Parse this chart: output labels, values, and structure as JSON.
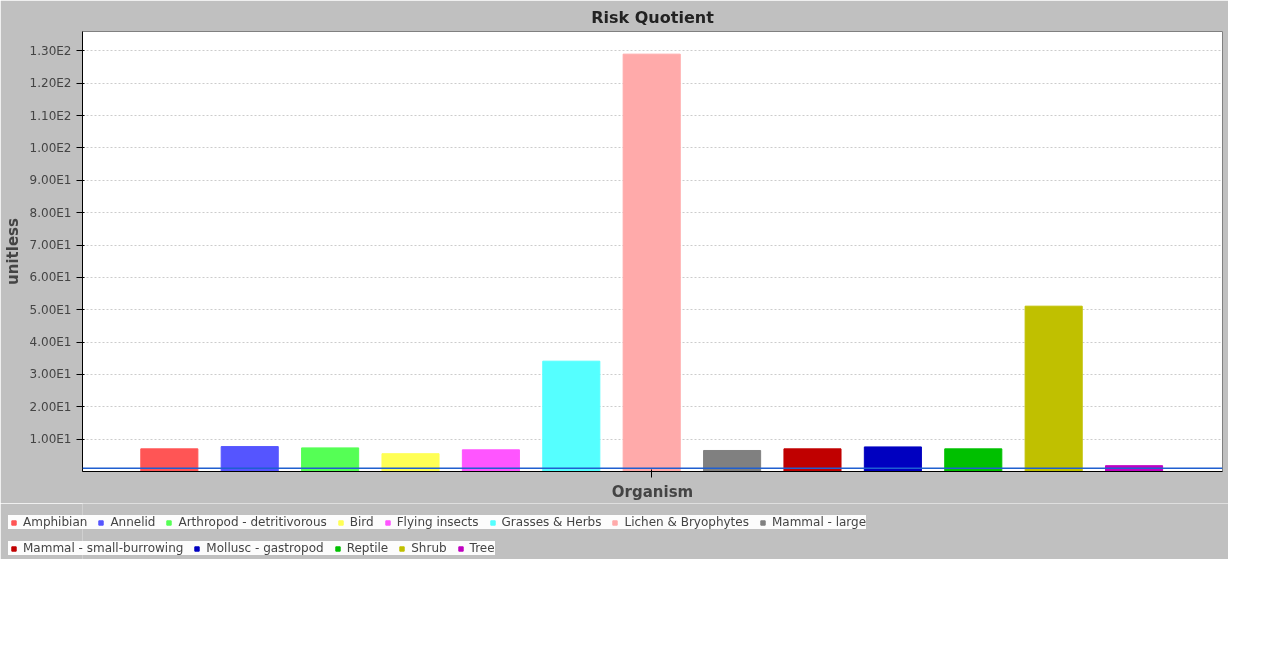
{
  "chart_data": {
    "type": "bar",
    "title": "Risk Quotient",
    "xlabel": "Organism",
    "ylabel": "unitless",
    "categories": [
      null
    ],
    "series": [
      {
        "name": "Amphibian",
        "color": "#ff5555",
        "values": [
          7.0
        ]
      },
      {
        "name": "Annelid",
        "color": "#5555ff",
        "values": [
          7.7
        ]
      },
      {
        "name": "Arthropod - detritivorous",
        "color": "#55ff55",
        "values": [
          7.3
        ]
      },
      {
        "name": "Bird",
        "color": "#ffff55",
        "values": [
          5.5
        ]
      },
      {
        "name": "Flying insects",
        "color": "#ff55ff",
        "values": [
          6.7
        ]
      },
      {
        "name": "Grasses & Herbs",
        "color": "#55ffff",
        "values": [
          34.1
        ]
      },
      {
        "name": "Lichen & Bryophytes",
        "color": "#ffaaaa",
        "values": [
          129
        ]
      },
      {
        "name": "Mammal - large",
        "color": "#808080",
        "values": [
          6.5
        ]
      },
      {
        "name": "Mammal - small-burrowing",
        "color": "#c00000",
        "values": [
          7.0
        ]
      },
      {
        "name": "Mollusc - gastropod",
        "color": "#0000c0",
        "values": [
          7.6
        ]
      },
      {
        "name": "Reptile",
        "color": "#00c000",
        "values": [
          7.0
        ]
      },
      {
        "name": "Shrub",
        "color": "#c0c000",
        "values": [
          51.1
        ]
      },
      {
        "name": "Tree",
        "color": "#c000c0",
        "values": [
          1.8
        ]
      }
    ],
    "ylim": [
      0,
      136
    ],
    "yticks": [
      {
        "value": 10,
        "label": "1.00E1"
      },
      {
        "value": 20,
        "label": "2.00E1"
      },
      {
        "value": 30,
        "label": "3.00E1"
      },
      {
        "value": 40,
        "label": "4.00E1"
      },
      {
        "value": 50,
        "label": "5.00E1"
      },
      {
        "value": 60,
        "label": "6.00E1"
      },
      {
        "value": 70,
        "label": "7.00E1"
      },
      {
        "value": 80,
        "label": "8.00E1"
      },
      {
        "value": 90,
        "label": "9.00E1"
      },
      {
        "value": 100,
        "label": "1.00E2"
      },
      {
        "value": 110,
        "label": "1.10E2"
      },
      {
        "value": 120,
        "label": "1.20E2"
      },
      {
        "value": 130,
        "label": "1.30E2"
      }
    ],
    "grid": "y",
    "legend": "bottom",
    "ref_lines": [
      {
        "axis": "y",
        "value": 1,
        "color": "#1f5fd0"
      }
    ]
  }
}
